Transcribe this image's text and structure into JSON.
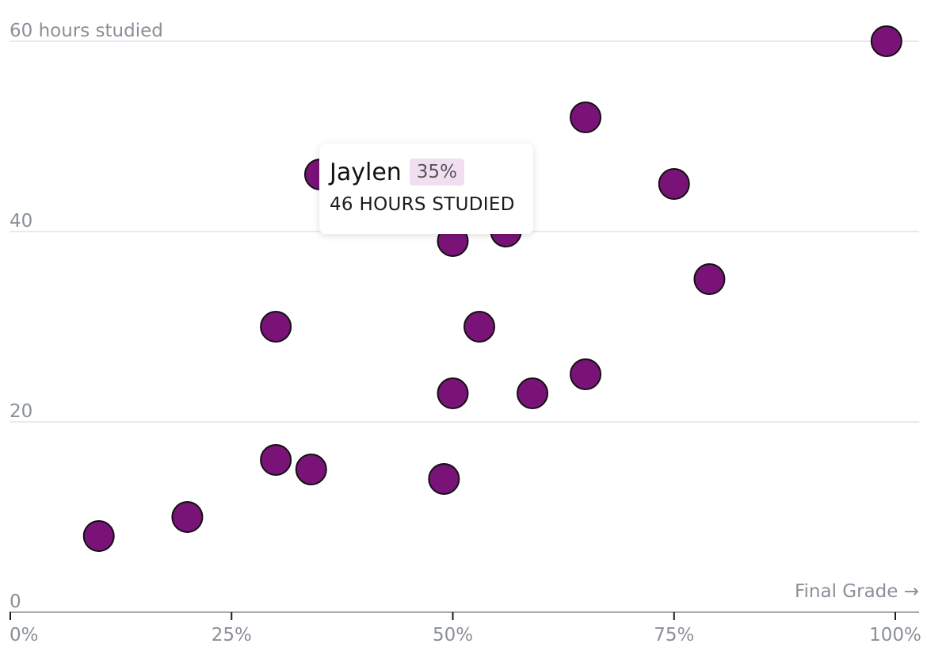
{
  "chart_data": {
    "type": "scatter",
    "xlabel": "Final Grade →",
    "ylabel": "hours studied",
    "xlim": [
      0,
      100
    ],
    "ylim": [
      0,
      60
    ],
    "x_ticks": [
      "0%",
      "25%",
      "50%",
      "75%",
      "100%"
    ],
    "x_tick_values": [
      0,
      25,
      50,
      75,
      100
    ],
    "y_ticks": [
      "0",
      "20",
      "40",
      "60 hours studied"
    ],
    "y_tick_values": [
      0,
      20,
      40,
      60
    ],
    "grid": "horizontal",
    "colors": {
      "point": "#7a1377",
      "point_border": "#111111",
      "grid": "#e3e4e7",
      "label": "#8a8f98",
      "badge": "#f1dff1"
    },
    "points": [
      {
        "x": 10,
        "y": 8
      },
      {
        "x": 20,
        "y": 10
      },
      {
        "x": 30,
        "y": 16
      },
      {
        "x": 30,
        "y": 30
      },
      {
        "x": 34,
        "y": 15
      },
      {
        "x": 35,
        "y": 46
      },
      {
        "x": 49,
        "y": 14
      },
      {
        "x": 50,
        "y": 23
      },
      {
        "x": 50,
        "y": 39
      },
      {
        "x": 53,
        "y": 30
      },
      {
        "x": 56,
        "y": 40
      },
      {
        "x": 59,
        "y": 23
      },
      {
        "x": 65,
        "y": 25
      },
      {
        "x": 65,
        "y": 52
      },
      {
        "x": 75,
        "y": 45
      },
      {
        "x": 79,
        "y": 35
      },
      {
        "x": 99,
        "y": 60
      }
    ],
    "tooltip": {
      "name": "Jaylen",
      "grade": "35%",
      "hours_text": "46 HOURS STUDIED"
    }
  }
}
